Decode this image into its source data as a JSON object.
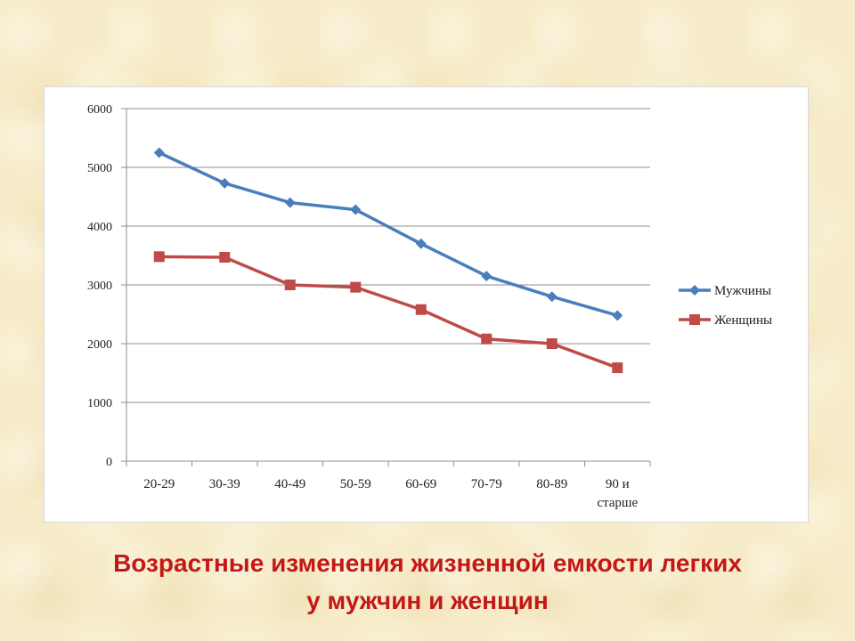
{
  "caption": {
    "line1": "Возрастные изменения жизненной емкости легких",
    "line2": "у мужчин и женщин"
  },
  "chart_data": {
    "type": "line",
    "title": "",
    "xlabel": "",
    "ylabel": "",
    "categories": [
      "20-29",
      "30-39",
      "40-49",
      "50-59",
      "60-69",
      "70-79",
      "80-89",
      "90 и старше"
    ],
    "category_lines": [
      [
        "20-29"
      ],
      [
        "30-39"
      ],
      [
        "40-49"
      ],
      [
        "50-59"
      ],
      [
        "60-69"
      ],
      [
        "70-79"
      ],
      [
        "80-89"
      ],
      [
        "90 и",
        "старше"
      ]
    ],
    "ylim": [
      0,
      6000
    ],
    "yticks": [
      0,
      1000,
      2000,
      3000,
      4000,
      5000,
      6000
    ],
    "grid": true,
    "legend_position": "right",
    "series": [
      {
        "name": "Мужчины",
        "color": "#4a7ebb",
        "marker": "diamond",
        "values": [
          5250,
          4730,
          4400,
          4280,
          3700,
          3150,
          2800,
          2480
        ]
      },
      {
        "name": "Женщины",
        "color": "#be4b48",
        "marker": "square",
        "values": [
          3480,
          3470,
          3000,
          2960,
          2580,
          2080,
          2000,
          1590
        ]
      }
    ]
  }
}
